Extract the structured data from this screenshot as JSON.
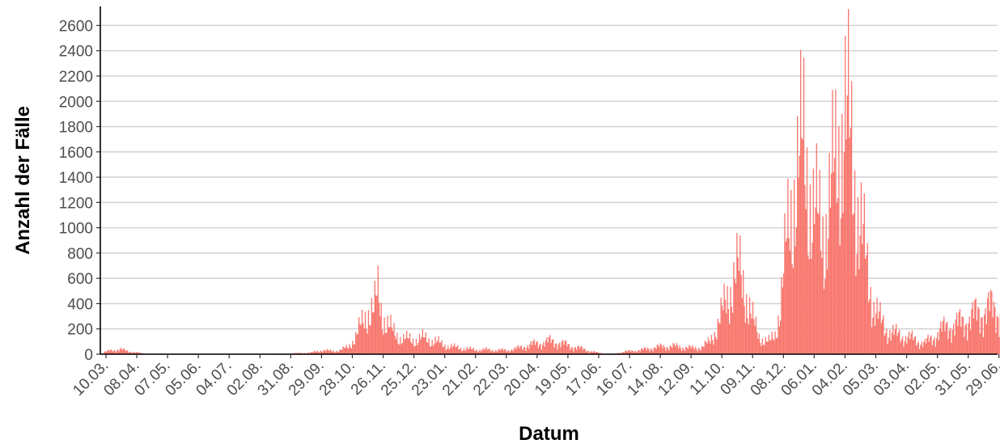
{
  "chart_data": {
    "type": "bar",
    "title": "",
    "xlabel": "Datum",
    "ylabel": "Anzahl der Fälle",
    "ylim": [
      0,
      2750
    ],
    "yticks": [
      0,
      200,
      400,
      600,
      800,
      1000,
      1200,
      1400,
      1600,
      1800,
      2000,
      2200,
      2400,
      2600
    ],
    "xticks": [
      "10.03.",
      "08.04.",
      "07.05.",
      "05.06.",
      "04.07.",
      "02.08.",
      "31.08.",
      "29.09.",
      "28.10.",
      "26.11.",
      "25.12.",
      "23.01.",
      "21.02.",
      "22.03.",
      "20.04.",
      "19.05.",
      "17.06.",
      "16.07.",
      "14.08.",
      "12.09.",
      "11.10.",
      "09.11.",
      "08.12.",
      "06.01.",
      "04.02.",
      "05.03.",
      "03.04.",
      "02.05.",
      "31.05.",
      "29.06."
    ],
    "x_tick_spacing_days": 29,
    "x_range_days": 845,
    "grid": "horizontal",
    "colors": {
      "bar": "#f8766d",
      "grid": "#d4d4d4",
      "axis": "#000000",
      "tick_text": "#4d4d4d"
    },
    "series_shape_days": [
      [
        0,
        20
      ],
      [
        8,
        40
      ],
      [
        15,
        50
      ],
      [
        22,
        30
      ],
      [
        29,
        20
      ],
      [
        36,
        8
      ],
      [
        44,
        3
      ],
      [
        60,
        0
      ],
      [
        100,
        0
      ],
      [
        150,
        2
      ],
      [
        170,
        5
      ],
      [
        195,
        15
      ],
      [
        205,
        40
      ],
      [
        215,
        30
      ],
      [
        222,
        40
      ],
      [
        230,
        70
      ],
      [
        237,
        180
      ],
      [
        244,
        320
      ],
      [
        250,
        460
      ],
      [
        254,
        430
      ],
      [
        258,
        600
      ],
      [
        262,
        400
      ],
      [
        267,
        300
      ],
      [
        272,
        220
      ],
      [
        280,
        160
      ],
      [
        290,
        140
      ],
      [
        300,
        160
      ],
      [
        312,
        130
      ],
      [
        320,
        90
      ],
      [
        330,
        70
      ],
      [
        340,
        55
      ],
      [
        350,
        45
      ],
      [
        360,
        45
      ],
      [
        370,
        40
      ],
      [
        380,
        40
      ],
      [
        388,
        55
      ],
      [
        395,
        75
      ],
      [
        402,
        95
      ],
      [
        410,
        110
      ],
      [
        420,
        130
      ],
      [
        430,
        110
      ],
      [
        440,
        80
      ],
      [
        450,
        55
      ],
      [
        458,
        30
      ],
      [
        465,
        15
      ],
      [
        472,
        5
      ],
      [
        480,
        5
      ],
      [
        488,
        20
      ],
      [
        495,
        30
      ],
      [
        505,
        40
      ],
      [
        515,
        60
      ],
      [
        525,
        75
      ],
      [
        535,
        80
      ],
      [
        545,
        70
      ],
      [
        555,
        60
      ],
      [
        563,
        70
      ],
      [
        570,
        120
      ],
      [
        576,
        250
      ],
      [
        582,
        400
      ],
      [
        588,
        620
      ],
      [
        593,
        760
      ],
      [
        598,
        820
      ],
      [
        603,
        700
      ],
      [
        607,
        500
      ],
      [
        612,
        300
      ],
      [
        617,
        180
      ],
      [
        622,
        140
      ],
      [
        627,
        120
      ],
      [
        632,
        200
      ],
      [
        637,
        500
      ],
      [
        641,
        900
      ],
      [
        645,
        1300
      ],
      [
        650,
        1700
      ],
      [
        655,
        1900
      ],
      [
        659,
        2050
      ],
      [
        663,
        1800
      ],
      [
        668,
        1400
      ],
      [
        673,
        1300
      ],
      [
        678,
        1250
      ],
      [
        683,
        1500
      ],
      [
        688,
        1800
      ],
      [
        693,
        2200
      ],
      [
        697,
        2400
      ],
      [
        701,
        2200
      ],
      [
        705,
        1900
      ],
      [
        710,
        1500
      ],
      [
        715,
        1100
      ],
      [
        720,
        750
      ],
      [
        725,
        500
      ],
      [
        730,
        350
      ],
      [
        737,
        250
      ],
      [
        745,
        200
      ],
      [
        752,
        180
      ],
      [
        760,
        160
      ],
      [
        767,
        130
      ],
      [
        773,
        110
      ],
      [
        780,
        160
      ],
      [
        787,
        230
      ],
      [
        795,
        280
      ],
      [
        803,
        300
      ],
      [
        810,
        330
      ],
      [
        818,
        380
      ],
      [
        826,
        420
      ],
      [
        834,
        460
      ],
      [
        845,
        420
      ]
    ]
  }
}
